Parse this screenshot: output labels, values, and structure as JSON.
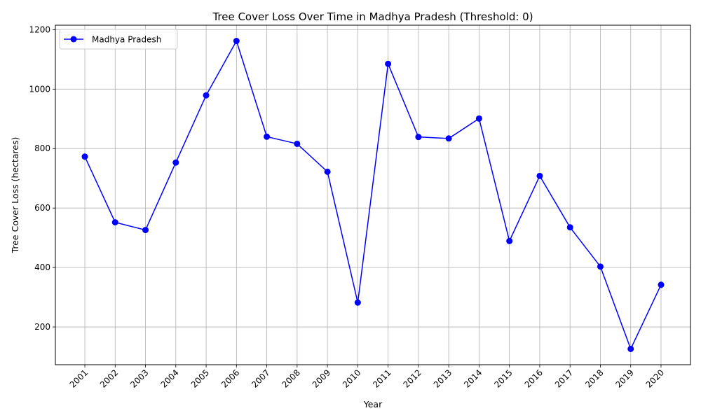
{
  "chart_data": {
    "type": "line",
    "title": "Tree Cover Loss Over Time in Madhya Pradesh (Threshold: 0)",
    "xlabel": "Year",
    "ylabel": "Tree Cover Loss (hectares)",
    "categories": [
      "2001",
      "2002",
      "2003",
      "2004",
      "2005",
      "2006",
      "2007",
      "2008",
      "2009",
      "2010",
      "2011",
      "2012",
      "2013",
      "2014",
      "2015",
      "2016",
      "2017",
      "2018",
      "2019",
      "2020"
    ],
    "series": [
      {
        "name": "Madhya Pradesh",
        "color": "#0000ff",
        "marker": "circle",
        "values": [
          773,
          552,
          526,
          753,
          979,
          1162,
          840,
          816,
          722,
          282,
          1085,
          839,
          834,
          901,
          489,
          708,
          535,
          403,
          126,
          342
        ]
      }
    ],
    "ylim": [
      73,
      1215
    ],
    "yticks": [
      200,
      400,
      600,
      800,
      1000,
      1200
    ],
    "grid": true,
    "legend": "upper-left",
    "xtick_rotation": 45
  }
}
